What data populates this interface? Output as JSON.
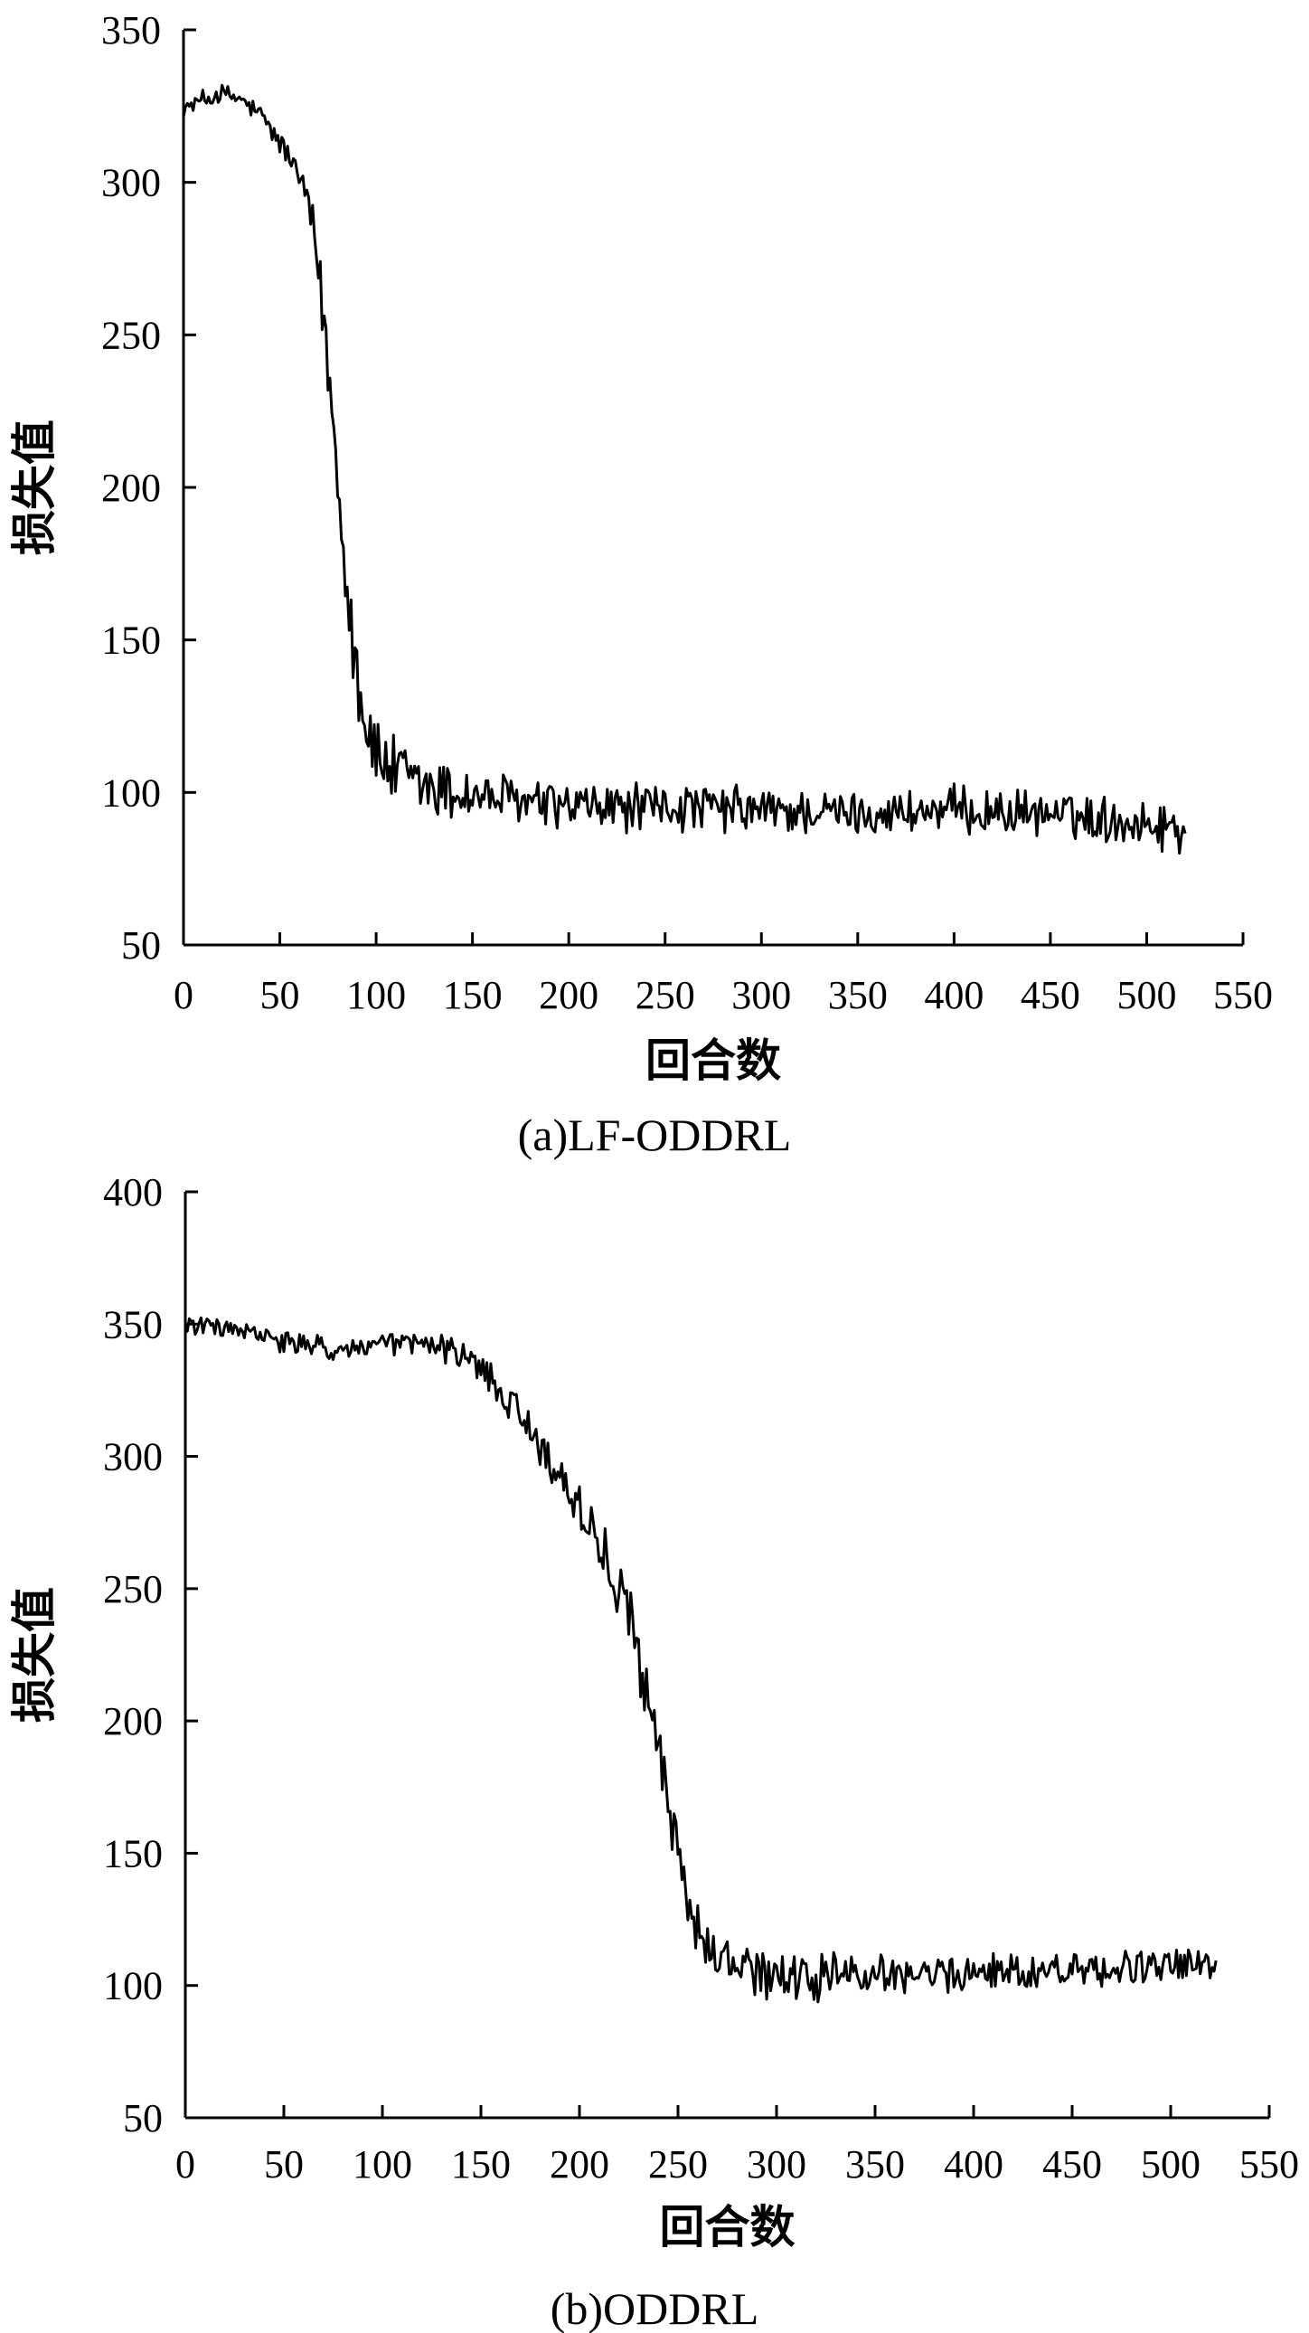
{
  "chart_data": [
    {
      "type": "line",
      "caption": "(a)LF-ODDRL",
      "xlabel": "回合数",
      "ylabel": "损失值",
      "xlim": [
        0,
        550
      ],
      "ylim": [
        50,
        350
      ],
      "xticks": [
        0,
        50,
        100,
        150,
        200,
        250,
        300,
        350,
        400,
        450,
        500,
        550
      ],
      "yticks": [
        50,
        100,
        150,
        200,
        250,
        300,
        350
      ],
      "x_range_data": [
        0,
        520
      ],
      "series": [
        {
          "color": "#000000",
          "x": [
            0,
            10,
            20,
            30,
            40,
            50,
            55,
            60,
            65,
            70,
            75,
            80,
            85,
            90,
            95,
            100,
            110,
            120,
            130,
            140,
            150,
            175,
            200,
            250,
            300,
            350,
            400,
            450,
            500,
            520
          ],
          "values": [
            324,
            327,
            329,
            327,
            322,
            313,
            308,
            302,
            292,
            272,
            240,
            205,
            170,
            140,
            122,
            112,
            106,
            103,
            101,
            100,
            99,
            97,
            95,
            95,
            94,
            93,
            94,
            93,
            90,
            88
          ],
          "noise_amplitude": [
            2,
            3,
            3,
            3,
            3,
            4,
            4,
            4,
            6,
            10,
            12,
            14,
            14,
            13,
            12,
            11,
            11,
            10,
            10,
            9,
            8,
            7,
            7,
            7,
            7,
            6,
            7,
            6,
            7,
            7
          ]
        }
      ]
    },
    {
      "type": "line",
      "caption": "(b)ODDRL",
      "xlabel": "回合数",
      "ylabel": "损失值",
      "xlim": [
        0,
        550
      ],
      "ylim": [
        50,
        400
      ],
      "xticks": [
        0,
        50,
        100,
        150,
        200,
        250,
        300,
        350,
        400,
        450,
        500,
        550
      ],
      "yticks": [
        50,
        100,
        150,
        200,
        250,
        300,
        350,
        400
      ],
      "x_range_data": [
        0,
        523
      ],
      "series": [
        {
          "color": "#000000",
          "x": [
            0,
            25,
            50,
            75,
            100,
            120,
            140,
            150,
            160,
            170,
            180,
            190,
            200,
            210,
            220,
            230,
            235,
            240,
            245,
            250,
            255,
            260,
            270,
            280,
            300,
            350,
            400,
            450,
            500,
            523
          ],
          "values": [
            350,
            348,
            343,
            340,
            342,
            343,
            338,
            333,
            325,
            315,
            305,
            292,
            280,
            268,
            250,
            228,
            210,
            190,
            168,
            150,
            133,
            120,
            110,
            106,
            102,
            104,
            105,
            106,
            107,
            108
          ],
          "noise_amplitude": [
            3,
            3,
            4,
            4,
            4,
            4,
            5,
            6,
            6,
            6,
            7,
            7,
            8,
            9,
            10,
            12,
            12,
            12,
            12,
            11,
            11,
            10,
            9,
            8,
            8,
            7,
            6,
            6,
            6,
            6
          ]
        }
      ]
    }
  ]
}
